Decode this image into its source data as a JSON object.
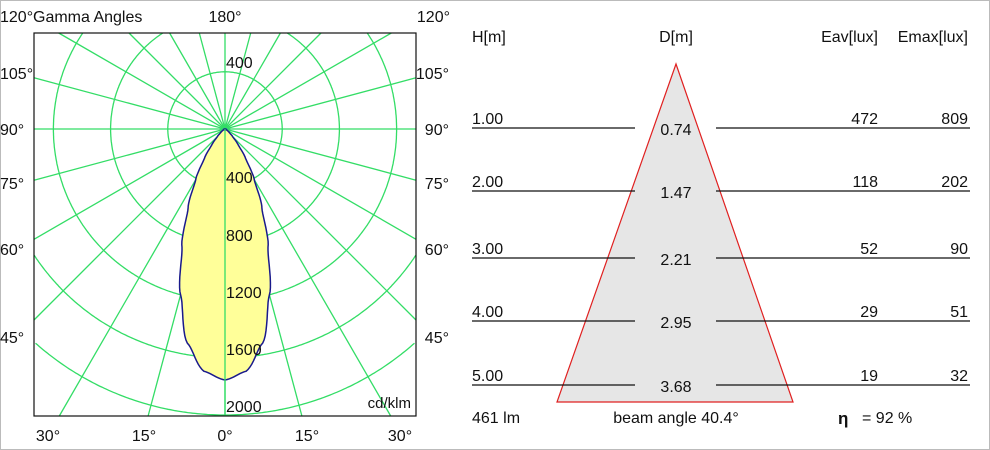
{
  "polar": {
    "title": "Gamma Angles",
    "unit": "cd/klm",
    "top_labels": [
      "120°",
      "180°",
      "120°"
    ],
    "side_labels": [
      "105°",
      "90°",
      "75°",
      "60°",
      "45°"
    ],
    "bottom_labels": [
      "30°",
      "15°",
      "0°",
      "15°",
      "30°"
    ],
    "upper_ring_label": "400",
    "ring_labels": [
      "400",
      "800",
      "1200",
      "1600",
      "2000"
    ],
    "colors": {
      "grid": "#33dd66",
      "curve": "#1a1a8c",
      "fill": "#ffff99"
    }
  },
  "chart_data": {
    "type": "polar",
    "unit": "cd/klm",
    "radial_ticks": [
      400,
      800,
      1200,
      1600,
      2000
    ],
    "angle_step_deg": 15,
    "series": [
      {
        "gamma_deg": [
          0,
          5,
          10,
          15,
          20,
          25,
          30,
          35,
          40,
          45,
          50,
          60,
          75,
          90
        ],
        "intensity": [
          1755,
          1700,
          1520,
          1200,
          880,
          610,
          410,
          250,
          140,
          75,
          40,
          12,
          3,
          0
        ]
      }
    ]
  },
  "cone": {
    "headers": {
      "h": "H[m]",
      "d": "D[m]",
      "eav": "Eav[lux]",
      "emax": "Emax[lux]"
    },
    "rows": [
      {
        "h": "1.00",
        "d": "0.74",
        "eav": "472",
        "emax": "809"
      },
      {
        "h": "2.00",
        "d": "1.47",
        "eav": "118",
        "emax": "202"
      },
      {
        "h": "3.00",
        "d": "2.21",
        "eav": "52",
        "emax": "90"
      },
      {
        "h": "4.00",
        "d": "2.95",
        "eav": "29",
        "emax": "51"
      },
      {
        "h": "5.00",
        "d": "3.68",
        "eav": "19",
        "emax": "32"
      }
    ],
    "flux": "461 lm",
    "beam_angle": "beam angle 40.4°",
    "eta_symbol": "η",
    "efficiency": "= 92 %",
    "colors": {
      "cone_edge": "#e02020",
      "cone_fill": "#e6e6e6"
    }
  }
}
